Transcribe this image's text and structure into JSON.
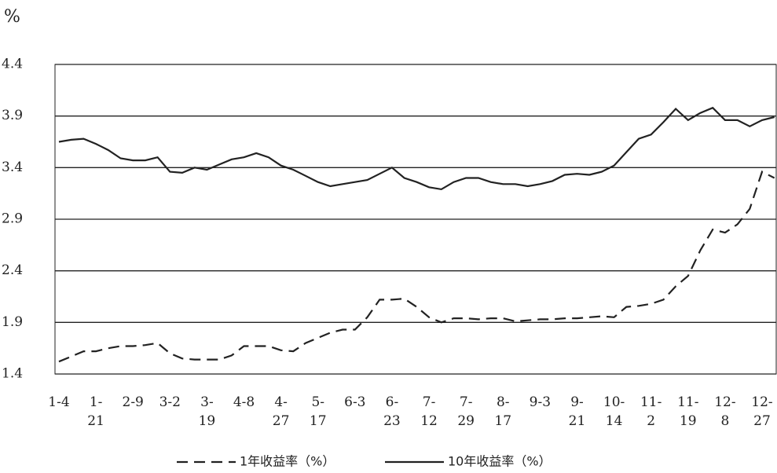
{
  "chart_data": {
    "type": "line",
    "y_label": "%",
    "categories": [
      "1-4",
      null,
      null,
      "1-\n21",
      null,
      null,
      "2-9",
      null,
      null,
      "3-2",
      null,
      null,
      "3-\n19",
      null,
      null,
      "4-8",
      null,
      null,
      "4-\n27",
      null,
      null,
      "5-\n17",
      null,
      null,
      "6-3",
      null,
      null,
      "6-\n23",
      null,
      null,
      "7-\n12",
      null,
      null,
      "7-\n29",
      null,
      null,
      "8-\n17",
      null,
      null,
      "9-3",
      null,
      null,
      "9-\n21",
      null,
      null,
      "10-\n14",
      null,
      null,
      "11-\n2",
      null,
      null,
      "11-\n19",
      null,
      null,
      "12-\n8",
      null,
      null,
      "12-\n27",
      null
    ],
    "series": [
      {
        "name": "1年收益率（%）",
        "color": "#222222",
        "style": "dashed",
        "values": [
          1.52,
          1.57,
          1.62,
          1.62,
          1.65,
          1.67,
          1.67,
          1.68,
          1.7,
          1.6,
          1.55,
          1.54,
          1.54,
          1.54,
          1.58,
          1.67,
          1.67,
          1.67,
          1.63,
          1.62,
          1.7,
          1.75,
          1.8,
          1.83,
          1.83,
          1.95,
          2.12,
          2.12,
          2.13,
          2.05,
          1.95,
          1.9,
          1.94,
          1.94,
          1.93,
          1.94,
          1.94,
          1.91,
          1.92,
          1.93,
          1.93,
          1.94,
          1.94,
          1.95,
          1.96,
          1.95,
          2.05,
          2.06,
          2.08,
          2.12,
          2.25,
          2.35,
          2.6,
          2.8,
          2.77,
          2.85,
          3.0,
          3.36,
          3.3
        ]
      },
      {
        "name": "10年收益率（%）",
        "color": "#222222",
        "style": "solid",
        "values": [
          3.65,
          3.67,
          3.68,
          3.63,
          3.57,
          3.49,
          3.47,
          3.47,
          3.5,
          3.36,
          3.35,
          3.4,
          3.38,
          3.43,
          3.48,
          3.5,
          3.54,
          3.5,
          3.42,
          3.38,
          3.32,
          3.26,
          3.22,
          3.24,
          3.26,
          3.28,
          3.34,
          3.4,
          3.3,
          3.26,
          3.21,
          3.19,
          3.26,
          3.3,
          3.3,
          3.26,
          3.24,
          3.24,
          3.22,
          3.24,
          3.27,
          3.33,
          3.34,
          3.33,
          3.36,
          3.42,
          3.55,
          3.68,
          3.72,
          3.84,
          3.97,
          3.86,
          3.93,
          3.98,
          3.86,
          3.86,
          3.8,
          3.86,
          3.89
        ]
      }
    ],
    "ylim": [
      1.4,
      4.4
    ],
    "yticks": [
      1.4,
      1.9,
      2.4,
      2.9,
      3.4,
      3.9,
      4.4
    ],
    "grid": true
  }
}
